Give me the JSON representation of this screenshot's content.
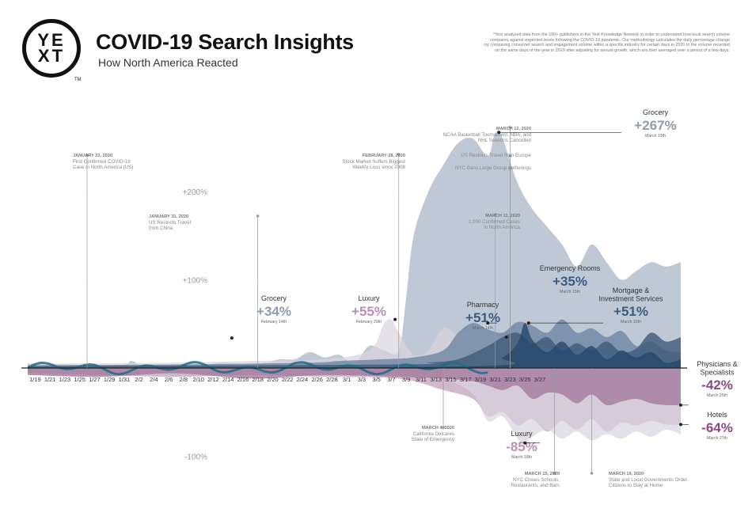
{
  "brand": {
    "logo_text": "YE\nXT",
    "trademark": "TM",
    "title": "COVID-19 Search Insights",
    "subtitle": "How North America Reacted",
    "footnote": "*Yext analyzed data from the 100+ publishers in the Yext Knowledge Network in order to understand how local search volume compares against expected levels following the COVID-19 pandemic. Our methodology calculates the daily percentage change by comparing consumer search and engagement volume within a specific industry for certain days in 2020 to the volume recorded on the same days of the year in 2019 after adjusting for annual growth, which are then averaged over a period of a few days."
  },
  "colors": {
    "grocery": "#b3bfce",
    "grocery_text": "#8d9cb0",
    "emergency": "#3f5a79",
    "emergency_text": "#3d5b7c",
    "mortgage": "#25486d",
    "pharmacy": "#6e86a2",
    "luxury": "#d9d3dd",
    "luxury_text": "#b98fb7",
    "physicians": "#a47a9c",
    "hotels": "#c4a6c1",
    "hotels_text": "#8a4a84",
    "teal": "#1e6f86",
    "axis": "#222222",
    "annotation": "#999999"
  },
  "chart_data": {
    "type": "area",
    "title": "COVID-19 Search Insights",
    "subtitle": "How North America Reacted",
    "xlabel": "",
    "ylabel": "",
    "ylim": [
      -110,
      290
    ],
    "y_ticks": [
      {
        "value": 200,
        "label": "+200%"
      },
      {
        "value": 100,
        "label": "+100%"
      },
      {
        "value": -100,
        "label": "-100%"
      }
    ],
    "x_ticks": [
      "1/19",
      "1/21",
      "1/23",
      "1/25",
      "1/27",
      "1/29",
      "1/31",
      "2/2",
      "2/4",
      "2/6",
      "2/8",
      "2/10",
      "2/12",
      "2/14",
      "2/16",
      "2/18",
      "2/20",
      "2/22",
      "2/24",
      "2/26",
      "2/28",
      "3/1",
      "3/3",
      "3/5",
      "3/7",
      "3/9",
      "3/11",
      "3/13",
      "3/15",
      "3/17",
      "3/19",
      "3/21",
      "3/23",
      "3/25",
      "3/27"
    ],
    "series": [
      {
        "name": "Grocery",
        "color_key": "grocery",
        "points": [
          [
            0,
            5
          ],
          [
            12,
            3
          ],
          [
            14,
            8
          ],
          [
            16,
            0
          ],
          [
            20,
            4
          ],
          [
            22,
            2
          ],
          [
            24,
            3
          ],
          [
            26,
            6
          ],
          [
            30,
            4
          ],
          [
            32,
            6
          ],
          [
            34,
            10
          ],
          [
            36,
            10
          ],
          [
            38,
            18
          ],
          [
            40,
            12
          ],
          [
            42,
            15
          ],
          [
            44,
            5
          ],
          [
            46,
            25
          ],
          [
            48,
            20
          ],
          [
            50,
            20
          ],
          [
            51,
            80
          ],
          [
            52,
            150
          ],
          [
            54,
            200
          ],
          [
            56,
            230
          ],
          [
            58,
            255
          ],
          [
            60,
            260
          ],
          [
            62,
            240
          ],
          [
            63,
            266
          ],
          [
            64,
            260
          ],
          [
            66,
            210
          ],
          [
            68,
            180
          ],
          [
            70,
            160
          ],
          [
            72,
            140
          ],
          [
            74,
            115
          ],
          [
            76,
            140
          ],
          [
            78,
            120
          ],
          [
            80,
            100
          ],
          [
            82,
            110
          ],
          [
            84,
            120
          ],
          [
            86,
            115
          ],
          [
            88,
            120
          ]
        ]
      },
      {
        "name": "Luxury",
        "color_key": "luxury",
        "points": [
          [
            0,
            5
          ],
          [
            20,
            6
          ],
          [
            30,
            8
          ],
          [
            40,
            10
          ],
          [
            46,
            20
          ],
          [
            48,
            50
          ],
          [
            49,
            55
          ],
          [
            50,
            40
          ],
          [
            52,
            15
          ],
          [
            54,
            20
          ],
          [
            56,
            45
          ],
          [
            58,
            38
          ],
          [
            60,
            45
          ],
          [
            62,
            48
          ],
          [
            64,
            30
          ],
          [
            66,
            45
          ],
          [
            68,
            30
          ],
          [
            70,
            25
          ],
          [
            72,
            18
          ],
          [
            74,
            10
          ],
          [
            76,
            8
          ],
          [
            78,
            12
          ],
          [
            80,
            6
          ],
          [
            82,
            8
          ],
          [
            84,
            5
          ],
          [
            86,
            6
          ],
          [
            88,
            4
          ]
        ]
      },
      {
        "name": "Pharmacy",
        "color_key": "pharmacy",
        "points": [
          [
            0,
            3
          ],
          [
            20,
            4
          ],
          [
            38,
            6
          ],
          [
            42,
            8
          ],
          [
            48,
            10
          ],
          [
            52,
            12
          ],
          [
            56,
            20
          ],
          [
            58,
            40
          ],
          [
            60,
            51
          ],
          [
            62,
            44
          ],
          [
            64,
            40
          ],
          [
            66,
            52
          ],
          [
            68,
            48
          ],
          [
            70,
            40
          ],
          [
            72,
            55
          ],
          [
            74,
            40
          ],
          [
            76,
            45
          ],
          [
            78,
            35
          ],
          [
            80,
            42
          ],
          [
            82,
            25
          ],
          [
            84,
            30
          ],
          [
            86,
            20
          ],
          [
            88,
            18
          ]
        ]
      },
      {
        "name": "Emergency Rooms",
        "color_key": "emergency",
        "points": [
          [
            0,
            2
          ],
          [
            50,
            4
          ],
          [
            54,
            6
          ],
          [
            58,
            10
          ],
          [
            62,
            25
          ],
          [
            64,
            35
          ],
          [
            66,
            40
          ],
          [
            68,
            28
          ],
          [
            70,
            35
          ],
          [
            72,
            20
          ],
          [
            74,
            28
          ],
          [
            76,
            20
          ],
          [
            78,
            30
          ],
          [
            80,
            18
          ],
          [
            82,
            22
          ],
          [
            84,
            40
          ],
          [
            86,
            30
          ],
          [
            88,
            35
          ]
        ]
      },
      {
        "name": "Mortgage & Investment Services",
        "color_key": "mortgage",
        "points": [
          [
            0,
            0
          ],
          [
            60,
            2
          ],
          [
            64,
            12
          ],
          [
            66,
            28
          ],
          [
            67,
            51
          ],
          [
            68,
            32
          ],
          [
            70,
            18
          ],
          [
            72,
            30
          ],
          [
            74,
            15
          ],
          [
            76,
            25
          ],
          [
            78,
            10
          ],
          [
            80,
            20
          ],
          [
            82,
            12
          ],
          [
            84,
            18
          ],
          [
            86,
            6
          ],
          [
            88,
            10
          ]
        ]
      },
      {
        "name": "Physicians & Specialists",
        "color_key": "physicians",
        "points": [
          [
            0,
            -8
          ],
          [
            10,
            -10
          ],
          [
            20,
            -6
          ],
          [
            30,
            -12
          ],
          [
            40,
            -8
          ],
          [
            50,
            -10
          ],
          [
            56,
            -12
          ],
          [
            60,
            -15
          ],
          [
            62,
            -20
          ],
          [
            64,
            -25
          ],
          [
            66,
            -20
          ],
          [
            68,
            -35
          ],
          [
            70,
            -28
          ],
          [
            72,
            -30
          ],
          [
            74,
            -40
          ],
          [
            76,
            -30
          ],
          [
            78,
            -42
          ],
          [
            80,
            -38
          ],
          [
            82,
            -35
          ],
          [
            84,
            -40
          ],
          [
            86,
            -42
          ],
          [
            88,
            -42
          ]
        ]
      },
      {
        "name": "Hotels",
        "color_key": "hotels",
        "points": [
          [
            0,
            -6
          ],
          [
            10,
            -8
          ],
          [
            20,
            -10
          ],
          [
            30,
            -8
          ],
          [
            40,
            -10
          ],
          [
            50,
            -12
          ],
          [
            56,
            -25
          ],
          [
            60,
            -35
          ],
          [
            62,
            -55
          ],
          [
            64,
            -50
          ],
          [
            66,
            -65
          ],
          [
            68,
            -58
          ],
          [
            70,
            -72
          ],
          [
            72,
            -60
          ],
          [
            74,
            -70
          ],
          [
            76,
            -58
          ],
          [
            78,
            -72
          ],
          [
            80,
            -62
          ],
          [
            82,
            -65
          ],
          [
            84,
            -60
          ],
          [
            86,
            -64
          ],
          [
            88,
            -64
          ]
        ]
      },
      {
        "name": "Luxury Decline",
        "color_key": "luxury",
        "points": [
          [
            56,
            -10
          ],
          [
            60,
            -30
          ],
          [
            62,
            -60
          ],
          [
            64,
            -55
          ],
          [
            66,
            -80
          ],
          [
            67,
            -85
          ],
          [
            68,
            -78
          ],
          [
            70,
            -70
          ],
          [
            72,
            -80
          ],
          [
            74,
            -72
          ],
          [
            76,
            -82
          ],
          [
            78,
            -75
          ],
          [
            80,
            -80
          ],
          [
            82,
            -72
          ],
          [
            84,
            -78
          ],
          [
            86,
            -70
          ],
          [
            88,
            -75
          ]
        ]
      }
    ],
    "callouts": [
      {
        "series": "Grocery",
        "value": "+34%",
        "date": "February 14th",
        "color_key": "grocery_text",
        "label": "Grocery"
      },
      {
        "series": "Luxury",
        "value": "+55%",
        "date": "February 29th",
        "color_key": "luxury_text",
        "label": "Luxury"
      },
      {
        "series": "Pharmacy",
        "value": "+51%",
        "date": "March 14th",
        "color_key": "emergency_text",
        "label": "Pharmacy"
      },
      {
        "series": "Emergency Rooms",
        "value": "+35%",
        "date": "March 15th",
        "color_key": "emergency_text",
        "label": "Emergency Rooms"
      },
      {
        "series": "Mortgage & Investment Services",
        "value": "+51%",
        "date": "March 16th",
        "color_key": "emergency_text",
        "label": "Mortgage &\nInvestment Services"
      },
      {
        "series": "Grocery",
        "value": "+267%",
        "date": "March 19th",
        "color_key": "grocery_text",
        "label": "Grocery"
      },
      {
        "series": "Physicians & Specialists",
        "value": "-42%",
        "date": "March 25th",
        "color_key": "hotels_text",
        "label": "Physicians &\nSpecialists"
      },
      {
        "series": "Hotels",
        "value": "-64%",
        "date": "March 27th",
        "color_key": "hotels_text",
        "label": "Hotels"
      },
      {
        "series": "Luxury",
        "value": "-85%",
        "date": "March 18th",
        "color_key": "luxury_text",
        "label": "Luxury"
      }
    ],
    "events": [
      {
        "date": "JANUARY 23, 2020",
        "text": "First Confirmed COVID-19\nCase in North America (US)"
      },
      {
        "date": "JANUARY 31, 2020",
        "text": "US Restricts Travel\nfrom China"
      },
      {
        "date": "FEBRUARY 28, 2020",
        "text": "Stock Market Suffers Biggest\nWeekly Loss since 2008"
      },
      {
        "date": "MARCH 12, 2020",
        "text": "NCAA Basketball Tournament, NBA, and\nNHL Seasons Cancelled"
      },
      {
        "date": "",
        "text": "US Restricts Travel from Europe"
      },
      {
        "date": "",
        "text": "NYC Bans Large Group gatherings"
      },
      {
        "date": "MARCH 11, 2020",
        "text": "1,000 Confirmed Cases\nin North America"
      },
      {
        "date": "MARCH 4, 2020",
        "text": "California Delcares\nState of Emergency"
      },
      {
        "date": "MARCH 15, 2020",
        "text": "NYC Closes Schools,\nRestaurants, and Bars"
      },
      {
        "date": "MARCH 19, 2020",
        "text": "State and Local Governments Order\nCitizens to Stay at Home"
      }
    ]
  }
}
